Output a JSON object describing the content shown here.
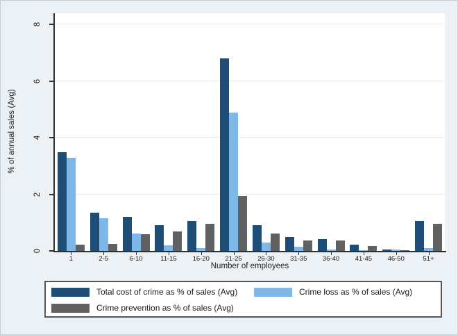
{
  "chart_data": {
    "type": "bar",
    "title": "",
    "xlabel": "Number of employees",
    "ylabel": "% of annual sales (Avg)",
    "ylim": [
      0,
      8.4
    ],
    "yticks": [
      0,
      2,
      4,
      6,
      8
    ],
    "grid": true,
    "legend_position": "bottom",
    "categories": [
      "1",
      "2-5",
      "6-10",
      "11-15",
      "16-20",
      "21-25",
      "26-30",
      "31-35",
      "36-40",
      "41-45",
      "46-50",
      "51+"
    ],
    "series": [
      {
        "name": "Total cost of crime as % of sales (Avg)",
        "color": "#1e4d78",
        "values": [
          3.5,
          1.35,
          1.2,
          0.9,
          1.05,
          6.8,
          0.9,
          0.5,
          0.42,
          0.22,
          0.05,
          1.05
        ]
      },
      {
        "name": "Crime loss as % of sales (Avg)",
        "color": "#7db8e8",
        "values": [
          3.3,
          1.15,
          0.62,
          0.2,
          0.1,
          4.9,
          0.3,
          0.15,
          0.06,
          0.02,
          0.04,
          0.1
        ]
      },
      {
        "name": "Crime prevention as % of sales (Avg)",
        "color": "#5f6163",
        "values": [
          0.22,
          0.25,
          0.6,
          0.7,
          0.97,
          1.95,
          0.62,
          0.37,
          0.37,
          0.18,
          0.03,
          0.95
        ]
      }
    ]
  },
  "colors": {
    "background": "#ecf1f5",
    "plot_background": "#ffffff",
    "gridline": "#e1eaf1",
    "axis": "#2f2f2f",
    "legend_border": "#565656"
  }
}
